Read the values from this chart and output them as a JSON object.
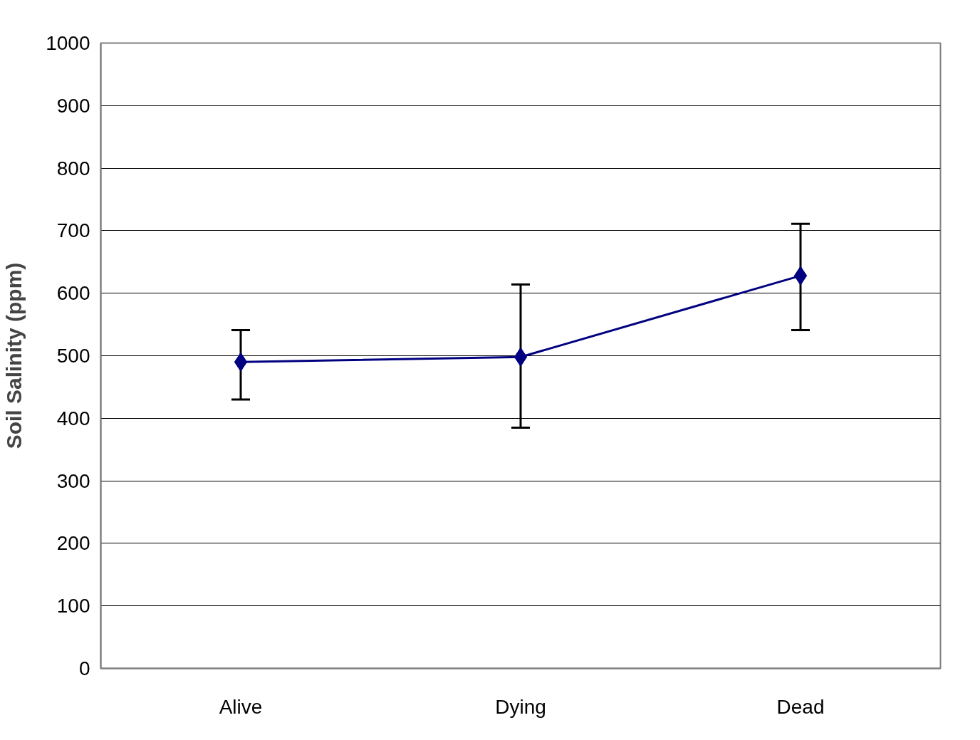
{
  "chart_data": {
    "type": "line",
    "ylabel": "Soil Salinity (ppm)",
    "categories": [
      "Alive",
      "Dying",
      "Dead"
    ],
    "series": [
      {
        "color": "#000080",
        "values": [
          490,
          498,
          628
        ],
        "errors": [
          [
            430,
            541
          ],
          [
            385,
            614
          ],
          [
            541,
            711
          ]
        ]
      }
    ],
    "ylim": [
      0,
      1000
    ],
    "yticks": [
      0,
      100,
      200,
      300,
      400,
      500,
      600,
      700,
      800,
      900,
      1000
    ],
    "grid": "y",
    "marker": "diamond",
    "line_style": "solid"
  }
}
